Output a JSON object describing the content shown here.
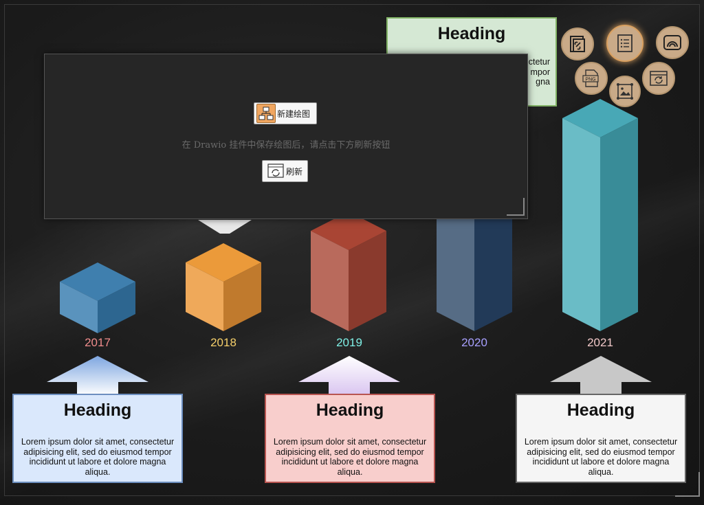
{
  "timeline": {
    "years": [
      {
        "label": "2017",
        "color": "#f08c8c"
      },
      {
        "label": "2018",
        "color": "#f6d06b"
      },
      {
        "label": "2019",
        "color": "#7ff0e6"
      },
      {
        "label": "2020",
        "color": "#a8a0ff"
      },
      {
        "label": "2021",
        "color": "#f2c9c9"
      }
    ],
    "cards": [
      {
        "heading": "Heading",
        "body": "Lorem ipsum dolor sit amet, consectetur adipisicing elit, sed do eiusmod tempor incididunt ut labore et dolore magna aliqua."
      },
      {
        "heading": "Heading",
        "body": "Lorem ipsum dolor sit amet, consectetur adipisicing elit, sed do eiusmod tempor incididunt ut labore et dolore magna aliqua."
      },
      {
        "heading": "Heading",
        "body": "Lorem ipsum dolor sit amet, consectetur adipisicing elit, sed do eiusmod tempor incididunt ut labore et dolore magna aliqua."
      },
      {
        "heading": "Heading",
        "body_partial": [
          "ctetur",
          "mpor",
          "gna"
        ]
      }
    ],
    "colors": {
      "blue": "#3a78a8",
      "orange": "#e8a04a",
      "red": "#b04a3c",
      "slate": "#3a5470",
      "teal": "#4fb0be",
      "card_blue": "#dae8fc",
      "card_red": "#f8cecc",
      "card_gray": "#f5f5f5",
      "card_green": "#d5e8d4"
    }
  },
  "toolbar": {
    "icons": [
      "link-copy-icon",
      "list-icon",
      "gauge-icon",
      "png-export-icon",
      "image-edit-icon",
      "refresh-window-icon"
    ],
    "png_label": "PNG"
  },
  "dialog": {
    "new_drawing_label": "新建绘图",
    "message": "在 Drawio 挂件中保存绘图后，请点击下方刷新按钮",
    "refresh_label": "刷新"
  }
}
